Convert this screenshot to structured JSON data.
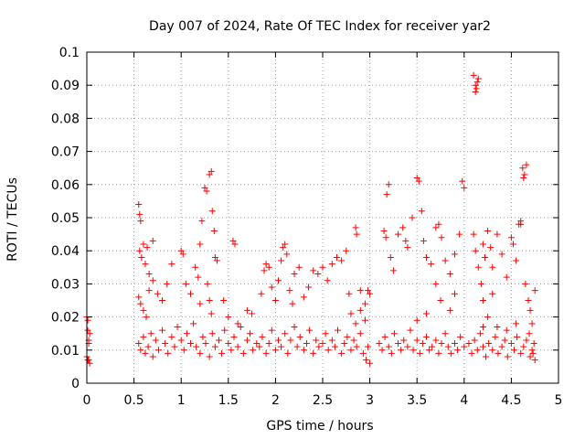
{
  "chart_data": {
    "type": "scatter",
    "title": "Day 007 of 2024, Rate Of TEC Index for receiver yar2",
    "xlabel": "GPS time / hours",
    "ylabel": "ROTI / TECUs",
    "xlim": [
      0,
      5
    ],
    "ylim": [
      0,
      0.1
    ],
    "x_ticks": [
      0,
      0.5,
      1,
      1.5,
      2,
      2.5,
      3,
      3.5,
      4,
      4.5,
      5
    ],
    "x_tick_labels": [
      "0",
      "0.5",
      "1",
      "1.5",
      "2",
      "2.5",
      "3",
      "3.5",
      "4",
      "4.5",
      "5"
    ],
    "y_ticks": [
      0,
      0.01,
      0.02,
      0.03,
      0.04,
      0.05,
      0.06,
      0.07,
      0.08,
      0.09,
      0.1
    ],
    "y_tick_labels": [
      "0",
      "0.01",
      "0.02",
      "0.03",
      "0.04",
      "0.05",
      "0.06",
      "0.07",
      "0.08",
      "0.09",
      "0.1"
    ],
    "grid": true,
    "marker": "plus",
    "color": "#ff0000",
    "series": [
      {
        "name": "ROTI",
        "points": [
          [
            0.0,
            0.02
          ],
          [
            0.01,
            0.019
          ],
          [
            0.01,
            0.016
          ],
          [
            0.02,
            0.013
          ],
          [
            0.02,
            0.012
          ],
          [
            0.03,
            0.015
          ],
          [
            0.0,
            0.008
          ],
          [
            0.01,
            0.007
          ],
          [
            0.02,
            0.007
          ],
          [
            0.03,
            0.006
          ],
          [
            0.55,
            0.054
          ],
          [
            0.56,
            0.051
          ],
          [
            0.57,
            0.049
          ],
          [
            0.56,
            0.04
          ],
          [
            0.58,
            0.038
          ],
          [
            0.6,
            0.042
          ],
          [
            0.62,
            0.036
          ],
          [
            0.64,
            0.041
          ],
          [
            0.66,
            0.033
          ],
          [
            0.7,
            0.043
          ],
          [
            0.55,
            0.026
          ],
          [
            0.57,
            0.024
          ],
          [
            0.6,
            0.022
          ],
          [
            0.63,
            0.02
          ],
          [
            0.66,
            0.028
          ],
          [
            0.7,
            0.031
          ],
          [
            0.75,
            0.027
          ],
          [
            0.8,
            0.025
          ],
          [
            0.85,
            0.03
          ],
          [
            0.9,
            0.036
          ],
          [
            0.55,
            0.012
          ],
          [
            0.57,
            0.01
          ],
          [
            0.6,
            0.014
          ],
          [
            0.62,
            0.009
          ],
          [
            0.65,
            0.011
          ],
          [
            0.68,
            0.015
          ],
          [
            0.7,
            0.008
          ],
          [
            0.73,
            0.013
          ],
          [
            0.76,
            0.01
          ],
          [
            0.8,
            0.016
          ],
          [
            0.83,
            0.012
          ],
          [
            0.86,
            0.009
          ],
          [
            0.9,
            0.014
          ],
          [
            0.93,
            0.011
          ],
          [
            0.96,
            0.017
          ],
          [
            1.0,
            0.013
          ],
          [
            1.03,
            0.01
          ],
          [
            1.06,
            0.015
          ],
          [
            1.1,
            0.012
          ],
          [
            1.13,
            0.018
          ],
          [
            1.0,
            0.04
          ],
          [
            1.02,
            0.039
          ],
          [
            1.05,
            0.03
          ],
          [
            1.1,
            0.027
          ],
          [
            1.15,
            0.035
          ],
          [
            1.18,
            0.032
          ],
          [
            1.2,
            0.042
          ],
          [
            1.22,
            0.049
          ],
          [
            1.25,
            0.059
          ],
          [
            1.27,
            0.058
          ],
          [
            1.3,
            0.063
          ],
          [
            1.32,
            0.064
          ],
          [
            1.33,
            0.052
          ],
          [
            1.35,
            0.046
          ],
          [
            1.36,
            0.038
          ],
          [
            1.38,
            0.037
          ],
          [
            1.3,
            0.025
          ],
          [
            1.32,
            0.021
          ],
          [
            1.28,
            0.03
          ],
          [
            1.2,
            0.024
          ],
          [
            1.16,
            0.011
          ],
          [
            1.2,
            0.009
          ],
          [
            1.23,
            0.014
          ],
          [
            1.26,
            0.012
          ],
          [
            1.3,
            0.008
          ],
          [
            1.33,
            0.015
          ],
          [
            1.36,
            0.011
          ],
          [
            1.4,
            0.013
          ],
          [
            1.43,
            0.009
          ],
          [
            1.46,
            0.016
          ],
          [
            1.5,
            0.012
          ],
          [
            1.53,
            0.01
          ],
          [
            1.56,
            0.014
          ],
          [
            1.6,
            0.011
          ],
          [
            1.63,
            0.017
          ],
          [
            1.66,
            0.009
          ],
          [
            1.7,
            0.013
          ],
          [
            1.73,
            0.015
          ],
          [
            1.76,
            0.01
          ],
          [
            1.8,
            0.012
          ],
          [
            1.55,
            0.043
          ],
          [
            1.57,
            0.042
          ],
          [
            1.45,
            0.025
          ],
          [
            1.5,
            0.02
          ],
          [
            1.6,
            0.018
          ],
          [
            1.7,
            0.022
          ],
          [
            1.75,
            0.021
          ],
          [
            1.85,
            0.027
          ],
          [
            1.88,
            0.034
          ],
          [
            1.9,
            0.036
          ],
          [
            1.93,
            0.035
          ],
          [
            1.96,
            0.029
          ],
          [
            2.0,
            0.025
          ],
          [
            2.03,
            0.031
          ],
          [
            2.06,
            0.037
          ],
          [
            2.08,
            0.041
          ],
          [
            2.1,
            0.042
          ],
          [
            2.12,
            0.039
          ],
          [
            2.15,
            0.028
          ],
          [
            2.18,
            0.024
          ],
          [
            1.83,
            0.011
          ],
          [
            1.86,
            0.014
          ],
          [
            1.9,
            0.009
          ],
          [
            1.93,
            0.012
          ],
          [
            1.96,
            0.016
          ],
          [
            2.0,
            0.01
          ],
          [
            2.03,
            0.013
          ],
          [
            2.06,
            0.011
          ],
          [
            2.1,
            0.015
          ],
          [
            2.13,
            0.009
          ],
          [
            2.16,
            0.013
          ],
          [
            2.2,
            0.017
          ],
          [
            2.23,
            0.011
          ],
          [
            2.26,
            0.014
          ],
          [
            2.3,
            0.01
          ],
          [
            2.33,
            0.012
          ],
          [
            2.36,
            0.016
          ],
          [
            2.4,
            0.009
          ],
          [
            2.43,
            0.013
          ],
          [
            2.46,
            0.011
          ],
          [
            2.2,
            0.033
          ],
          [
            2.25,
            0.035
          ],
          [
            2.3,
            0.026
          ],
          [
            2.35,
            0.029
          ],
          [
            2.4,
            0.034
          ],
          [
            2.45,
            0.033
          ],
          [
            2.5,
            0.035
          ],
          [
            2.55,
            0.031
          ],
          [
            2.6,
            0.036
          ],
          [
            2.65,
            0.038
          ],
          [
            2.7,
            0.037
          ],
          [
            2.75,
            0.04
          ],
          [
            2.78,
            0.027
          ],
          [
            2.8,
            0.021
          ],
          [
            2.85,
            0.047
          ],
          [
            2.86,
            0.045
          ],
          [
            2.9,
            0.028
          ],
          [
            2.95,
            0.024
          ],
          [
            2.98,
            0.028
          ],
          [
            3.0,
            0.027
          ],
          [
            2.5,
            0.012
          ],
          [
            2.53,
            0.015
          ],
          [
            2.56,
            0.01
          ],
          [
            2.6,
            0.013
          ],
          [
            2.63,
            0.011
          ],
          [
            2.66,
            0.016
          ],
          [
            2.7,
            0.009
          ],
          [
            2.73,
            0.012
          ],
          [
            2.76,
            0.014
          ],
          [
            2.8,
            0.01
          ],
          [
            2.83,
            0.013
          ],
          [
            2.86,
            0.011
          ],
          [
            2.9,
            0.015
          ],
          [
            2.93,
            0.009
          ],
          [
            2.96,
            0.007
          ],
          [
            3.0,
            0.006
          ],
          [
            2.98,
            0.011
          ],
          [
            2.95,
            0.019
          ],
          [
            2.9,
            0.022
          ],
          [
            2.85,
            0.018
          ],
          [
            3.15,
            0.046
          ],
          [
            3.17,
            0.044
          ],
          [
            3.18,
            0.057
          ],
          [
            3.2,
            0.06
          ],
          [
            3.22,
            0.038
          ],
          [
            3.25,
            0.034
          ],
          [
            3.3,
            0.045
          ],
          [
            3.35,
            0.047
          ],
          [
            3.38,
            0.043
          ],
          [
            3.4,
            0.041
          ],
          [
            3.45,
            0.05
          ],
          [
            3.5,
            0.062
          ],
          [
            3.52,
            0.061
          ],
          [
            3.55,
            0.052
          ],
          [
            3.57,
            0.043
          ],
          [
            3.6,
            0.038
          ],
          [
            3.65,
            0.036
          ],
          [
            3.7,
            0.047
          ],
          [
            3.73,
            0.048
          ],
          [
            3.76,
            0.044
          ],
          [
            3.8,
            0.037
          ],
          [
            3.85,
            0.033
          ],
          [
            3.9,
            0.039
          ],
          [
            3.95,
            0.045
          ],
          [
            3.98,
            0.061
          ],
          [
            4.0,
            0.059
          ],
          [
            3.9,
            0.027
          ],
          [
            3.85,
            0.022
          ],
          [
            3.75,
            0.025
          ],
          [
            3.7,
            0.03
          ],
          [
            3.1,
            0.012
          ],
          [
            3.13,
            0.01
          ],
          [
            3.16,
            0.014
          ],
          [
            3.2,
            0.011
          ],
          [
            3.23,
            0.009
          ],
          [
            3.26,
            0.015
          ],
          [
            3.3,
            0.012
          ],
          [
            3.33,
            0.01
          ],
          [
            3.36,
            0.013
          ],
          [
            3.4,
            0.011
          ],
          [
            3.43,
            0.016
          ],
          [
            3.46,
            0.01
          ],
          [
            3.5,
            0.013
          ],
          [
            3.53,
            0.009
          ],
          [
            3.56,
            0.012
          ],
          [
            3.6,
            0.014
          ],
          [
            3.63,
            0.01
          ],
          [
            3.66,
            0.011
          ],
          [
            3.7,
            0.013
          ],
          [
            3.73,
            0.009
          ],
          [
            3.76,
            0.012
          ],
          [
            3.8,
            0.015
          ],
          [
            3.83,
            0.011
          ],
          [
            3.86,
            0.009
          ],
          [
            3.9,
            0.012
          ],
          [
            3.93,
            0.01
          ],
          [
            3.96,
            0.014
          ],
          [
            4.0,
            0.011
          ],
          [
            3.5,
            0.019
          ],
          [
            3.6,
            0.021
          ],
          [
            4.1,
            0.093
          ],
          [
            4.12,
            0.09
          ],
          [
            4.13,
            0.089
          ],
          [
            4.14,
            0.091
          ],
          [
            4.15,
            0.092
          ],
          [
            4.12,
            0.088
          ],
          [
            4.1,
            0.045
          ],
          [
            4.12,
            0.04
          ],
          [
            4.15,
            0.035
          ],
          [
            4.18,
            0.03
          ],
          [
            4.2,
            0.042
          ],
          [
            4.22,
            0.038
          ],
          [
            4.25,
            0.046
          ],
          [
            4.28,
            0.041
          ],
          [
            4.3,
            0.035
          ],
          [
            4.35,
            0.045
          ],
          [
            4.4,
            0.039
          ],
          [
            4.45,
            0.032
          ],
          [
            4.5,
            0.044
          ],
          [
            4.52,
            0.042
          ],
          [
            4.55,
            0.037
          ],
          [
            4.58,
            0.048
          ],
          [
            4.6,
            0.048
          ],
          [
            4.62,
            0.065
          ],
          [
            4.64,
            0.063
          ],
          [
            4.66,
            0.066
          ],
          [
            4.63,
            0.062
          ],
          [
            4.6,
            0.049
          ],
          [
            4.65,
            0.03
          ],
          [
            4.68,
            0.025
          ],
          [
            4.7,
            0.022
          ],
          [
            4.72,
            0.018
          ],
          [
            4.75,
            0.028
          ],
          [
            4.2,
            0.025
          ],
          [
            4.25,
            0.02
          ],
          [
            4.3,
            0.027
          ],
          [
            4.05,
            0.012
          ],
          [
            4.08,
            0.009
          ],
          [
            4.11,
            0.013
          ],
          [
            4.14,
            0.01
          ],
          [
            4.17,
            0.015
          ],
          [
            4.2,
            0.011
          ],
          [
            4.23,
            0.008
          ],
          [
            4.26,
            0.012
          ],
          [
            4.3,
            0.01
          ],
          [
            4.33,
            0.014
          ],
          [
            4.36,
            0.009
          ],
          [
            4.4,
            0.011
          ],
          [
            4.43,
            0.013
          ],
          [
            4.46,
            0.008
          ],
          [
            4.5,
            0.012
          ],
          [
            4.53,
            0.01
          ],
          [
            4.56,
            0.014
          ],
          [
            4.6,
            0.009
          ],
          [
            4.63,
            0.011
          ],
          [
            4.66,
            0.013
          ],
          [
            4.7,
            0.008
          ],
          [
            4.72,
            0.01
          ],
          [
            4.74,
            0.012
          ],
          [
            4.75,
            0.007
          ],
          [
            4.73,
            0.009
          ],
          [
            4.69,
            0.015
          ],
          [
            4.55,
            0.018
          ],
          [
            4.45,
            0.016
          ],
          [
            4.35,
            0.017
          ],
          [
            4.2,
            0.017
          ]
        ]
      }
    ]
  }
}
